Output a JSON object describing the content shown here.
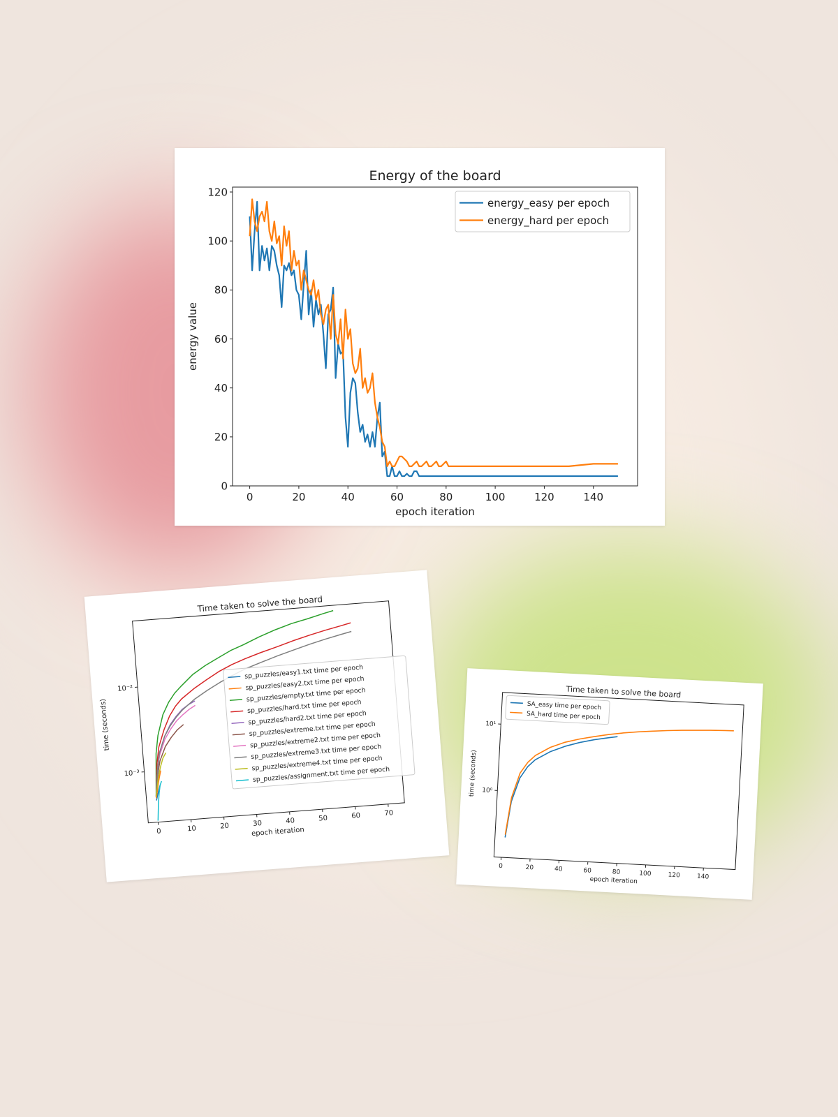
{
  "chart_data": [
    {
      "type": "line",
      "title": "Energy of the board",
      "xlabel": "epoch iteration",
      "ylabel": "energy value",
      "xlim": [
        -7,
        158
      ],
      "ylim": [
        0,
        122
      ],
      "xticks": [
        "0",
        "20",
        "40",
        "60",
        "80",
        "100",
        "120",
        "140"
      ],
      "yticks": [
        "0",
        "20",
        "40",
        "60",
        "80",
        "100",
        "120"
      ],
      "legend_position": "top-right",
      "series": [
        {
          "name": "energy_easy per epoch",
          "color": "#1f77b4",
          "x": [
            0,
            1,
            2,
            3,
            4,
            5,
            6,
            7,
            8,
            9,
            10,
            11,
            12,
            13,
            14,
            15,
            16,
            17,
            18,
            19,
            20,
            21,
            22,
            23,
            24,
            25,
            26,
            27,
            28,
            29,
            30,
            31,
            32,
            33,
            34,
            35,
            36,
            37,
            38,
            39,
            40,
            41,
            42,
            43,
            44,
            45,
            46,
            47,
            48,
            49,
            50,
            51,
            52,
            53,
            54,
            55,
            56,
            57,
            58,
            59,
            60,
            61,
            62,
            63,
            64,
            65,
            66,
            67,
            68,
            69,
            70,
            80,
            90,
            100,
            110,
            120,
            130,
            140,
            150
          ],
          "y": [
            110,
            88,
            104,
            116,
            88,
            98,
            92,
            97,
            88,
            98,
            96,
            90,
            86,
            73,
            90,
            88,
            91,
            86,
            88,
            80,
            78,
            68,
            82,
            96,
            70,
            80,
            65,
            76,
            70,
            74,
            62,
            48,
            70,
            72,
            81,
            44,
            58,
            54,
            55,
            28,
            16,
            38,
            44,
            42,
            30,
            22,
            25,
            18,
            21,
            16,
            22,
            16,
            28,
            34,
            12,
            14,
            4,
            4,
            8,
            4,
            4,
            6,
            4,
            4,
            5,
            4,
            4,
            6,
            6,
            4,
            4,
            4,
            4,
            4,
            4,
            4,
            4,
            4,
            4
          ]
        },
        {
          "name": "energy_hard per epoch",
          "color": "#ff7f0e",
          "x": [
            0,
            1,
            2,
            3,
            4,
            5,
            6,
            7,
            8,
            9,
            10,
            11,
            12,
            13,
            14,
            15,
            16,
            17,
            18,
            19,
            20,
            21,
            22,
            23,
            24,
            25,
            26,
            27,
            28,
            29,
            30,
            31,
            32,
            33,
            34,
            35,
            36,
            37,
            38,
            39,
            40,
            41,
            42,
            43,
            44,
            45,
            46,
            47,
            48,
            49,
            50,
            51,
            52,
            53,
            54,
            55,
            56,
            57,
            58,
            59,
            60,
            61,
            62,
            64,
            65,
            66,
            68,
            69,
            70,
            72,
            73,
            74,
            76,
            77,
            78,
            80,
            81,
            82,
            90,
            100,
            110,
            120,
            130,
            140,
            150
          ],
          "y": [
            102,
            117,
            108,
            104,
            110,
            112,
            108,
            116,
            104,
            100,
            108,
            99,
            102,
            90,
            106,
            98,
            104,
            88,
            96,
            90,
            92,
            80,
            88,
            84,
            80,
            78,
            84,
            76,
            80,
            70,
            66,
            72,
            74,
            60,
            78,
            62,
            58,
            68,
            52,
            72,
            60,
            64,
            50,
            46,
            48,
            56,
            40,
            44,
            38,
            40,
            46,
            34,
            28,
            24,
            18,
            16,
            8,
            10,
            8,
            8,
            10,
            12,
            12,
            10,
            8,
            8,
            10,
            8,
            8,
            10,
            8,
            8,
            10,
            8,
            8,
            10,
            8,
            8,
            8,
            8,
            8,
            8,
            8,
            9,
            9
          ]
        }
      ]
    },
    {
      "type": "line",
      "title": "Time taken to solve the board",
      "xlabel": "epoch iteration",
      "ylabel": "time (seconds)",
      "y_scale": "log",
      "xlim": [
        -3,
        75
      ],
      "ylim": [
        0.00025,
        0.06
      ],
      "xticks": [
        "0",
        "10",
        "20",
        "30",
        "40",
        "50",
        "60",
        "70"
      ],
      "yticks": [
        "10⁻³",
        "10⁻²"
      ],
      "legend_position": "center-right",
      "series": [
        {
          "name": "sp_puzzles/easy1.txt time per epoch",
          "color": "#1f77b4",
          "x": [
            0,
            0.5,
            1,
            1.5
          ],
          "y": [
            0.00045,
            0.00052,
            0.0006,
            0.00068
          ]
        },
        {
          "name": "sp_puzzles/easy2.txt time per epoch",
          "color": "#ff7f0e",
          "x": [
            0,
            0.5,
            1,
            1.5,
            2
          ],
          "y": [
            0.00048,
            0.00058,
            0.00072,
            0.00085,
            0.001
          ]
        },
        {
          "name": "sp_puzzles/empty.txt time per epoch",
          "color": "#2ca02c",
          "x": [
            0,
            1,
            2,
            4,
            6,
            8,
            10,
            14,
            18,
            22,
            26,
            30,
            35,
            40,
            45,
            50,
            55,
            58
          ],
          "y": [
            0.0005,
            0.0016,
            0.0026,
            0.0045,
            0.0062,
            0.0078,
            0.0092,
            0.0125,
            0.0155,
            0.0185,
            0.022,
            0.025,
            0.03,
            0.035,
            0.04,
            0.044,
            0.049,
            0.052
          ]
        },
        {
          "name": "sp_puzzles/hard.txt time per epoch",
          "color": "#d62728",
          "x": [
            0,
            1,
            2,
            4,
            6,
            8,
            10,
            14,
            18,
            22,
            26,
            30,
            35,
            40,
            45,
            50,
            55,
            60,
            63
          ],
          "y": [
            0.0005,
            0.0012,
            0.0019,
            0.003,
            0.0043,
            0.0055,
            0.0066,
            0.0085,
            0.0105,
            0.0128,
            0.015,
            0.017,
            0.0195,
            0.022,
            0.025,
            0.028,
            0.031,
            0.034,
            0.036
          ]
        },
        {
          "name": "sp_puzzles/hard2.txt time per epoch",
          "color": "#9467bd",
          "x": [
            0,
            1,
            2,
            4,
            6,
            8,
            10,
            12,
            14
          ],
          "y": [
            0.0005,
            0.001,
            0.0016,
            0.0025,
            0.0034,
            0.0042,
            0.005,
            0.0056,
            0.0061
          ]
        },
        {
          "name": "sp_puzzles/extreme.txt time per epoch",
          "color": "#8c564b",
          "x": [
            0,
            1,
            2,
            4,
            6,
            8,
            10
          ],
          "y": [
            0.0005,
            0.0009,
            0.0013,
            0.0019,
            0.0024,
            0.0029,
            0.0033
          ]
        },
        {
          "name": "sp_puzzles/extreme2.txt time per epoch",
          "color": "#e377c2",
          "x": [
            0,
            1,
            2,
            4,
            6,
            8,
            10,
            12,
            14
          ],
          "y": [
            0.0005,
            0.001,
            0.0015,
            0.0023,
            0.003,
            0.0037,
            0.0043,
            0.0049,
            0.0054
          ]
        },
        {
          "name": "sp_puzzles/extreme3.txt time per epoch",
          "color": "#7f7f7f",
          "x": [
            0,
            1,
            2,
            4,
            6,
            8,
            10,
            14,
            18,
            22,
            26,
            30,
            35,
            40,
            45,
            50,
            55,
            60,
            63
          ],
          "y": [
            0.0005,
            0.001,
            0.0016,
            0.0025,
            0.0033,
            0.0041,
            0.0049,
            0.0064,
            0.0079,
            0.0095,
            0.0112,
            0.013,
            0.015,
            0.0172,
            0.0195,
            0.022,
            0.0245,
            0.027,
            0.0285
          ]
        },
        {
          "name": "sp_puzzles/extreme4.txt time per epoch",
          "color": "#bcbd22",
          "x": [
            0,
            1,
            2,
            3,
            4
          ],
          "y": [
            0.0005,
            0.0008,
            0.0011,
            0.0014,
            0.0016
          ]
        },
        {
          "name": "sp_puzzles/assignment.txt time per epoch",
          "color": "#17becf",
          "x": [
            0,
            0.5,
            1,
            1.5,
            2
          ],
          "y": [
            0.00026,
            0.0004,
            0.00055,
            0.00068,
            0.00075
          ]
        }
      ]
    },
    {
      "type": "line",
      "title": "Time taken to solve the board",
      "xlabel": "epoch iteration",
      "ylabel": "time (seconds)",
      "y_scale": "log",
      "xlim": [
        -5,
        162
      ],
      "ylim": [
        0.1,
        30
      ],
      "xticks": [
        "0",
        "20",
        "40",
        "60",
        "80",
        "100",
        "120",
        "140"
      ],
      "yticks": [
        "10⁰",
        "10¹"
      ],
      "legend_position": "top-left",
      "series": [
        {
          "name": "SA_easy time per epoch",
          "color": "#1f77b4",
          "x": [
            2,
            5,
            10,
            15,
            20,
            30,
            40,
            50,
            60,
            70,
            76
          ],
          "y": [
            0.2,
            0.7,
            1.6,
            2.4,
            3.1,
            4.2,
            5.2,
            6.1,
            6.9,
            7.6,
            8.0
          ]
        },
        {
          "name": "SA_hard time per epoch",
          "color": "#ff7f0e",
          "x": [
            2,
            5,
            10,
            15,
            20,
            30,
            40,
            50,
            60,
            70,
            80,
            90,
            100,
            110,
            120,
            130,
            140,
            150,
            156
          ],
          "y": [
            0.22,
            0.8,
            1.9,
            2.8,
            3.6,
            4.9,
            6.0,
            6.9,
            7.7,
            8.5,
            9.2,
            9.8,
            10.3,
            10.8,
            11.2,
            11.5,
            11.8,
            12.0,
            12.1
          ]
        }
      ]
    }
  ]
}
